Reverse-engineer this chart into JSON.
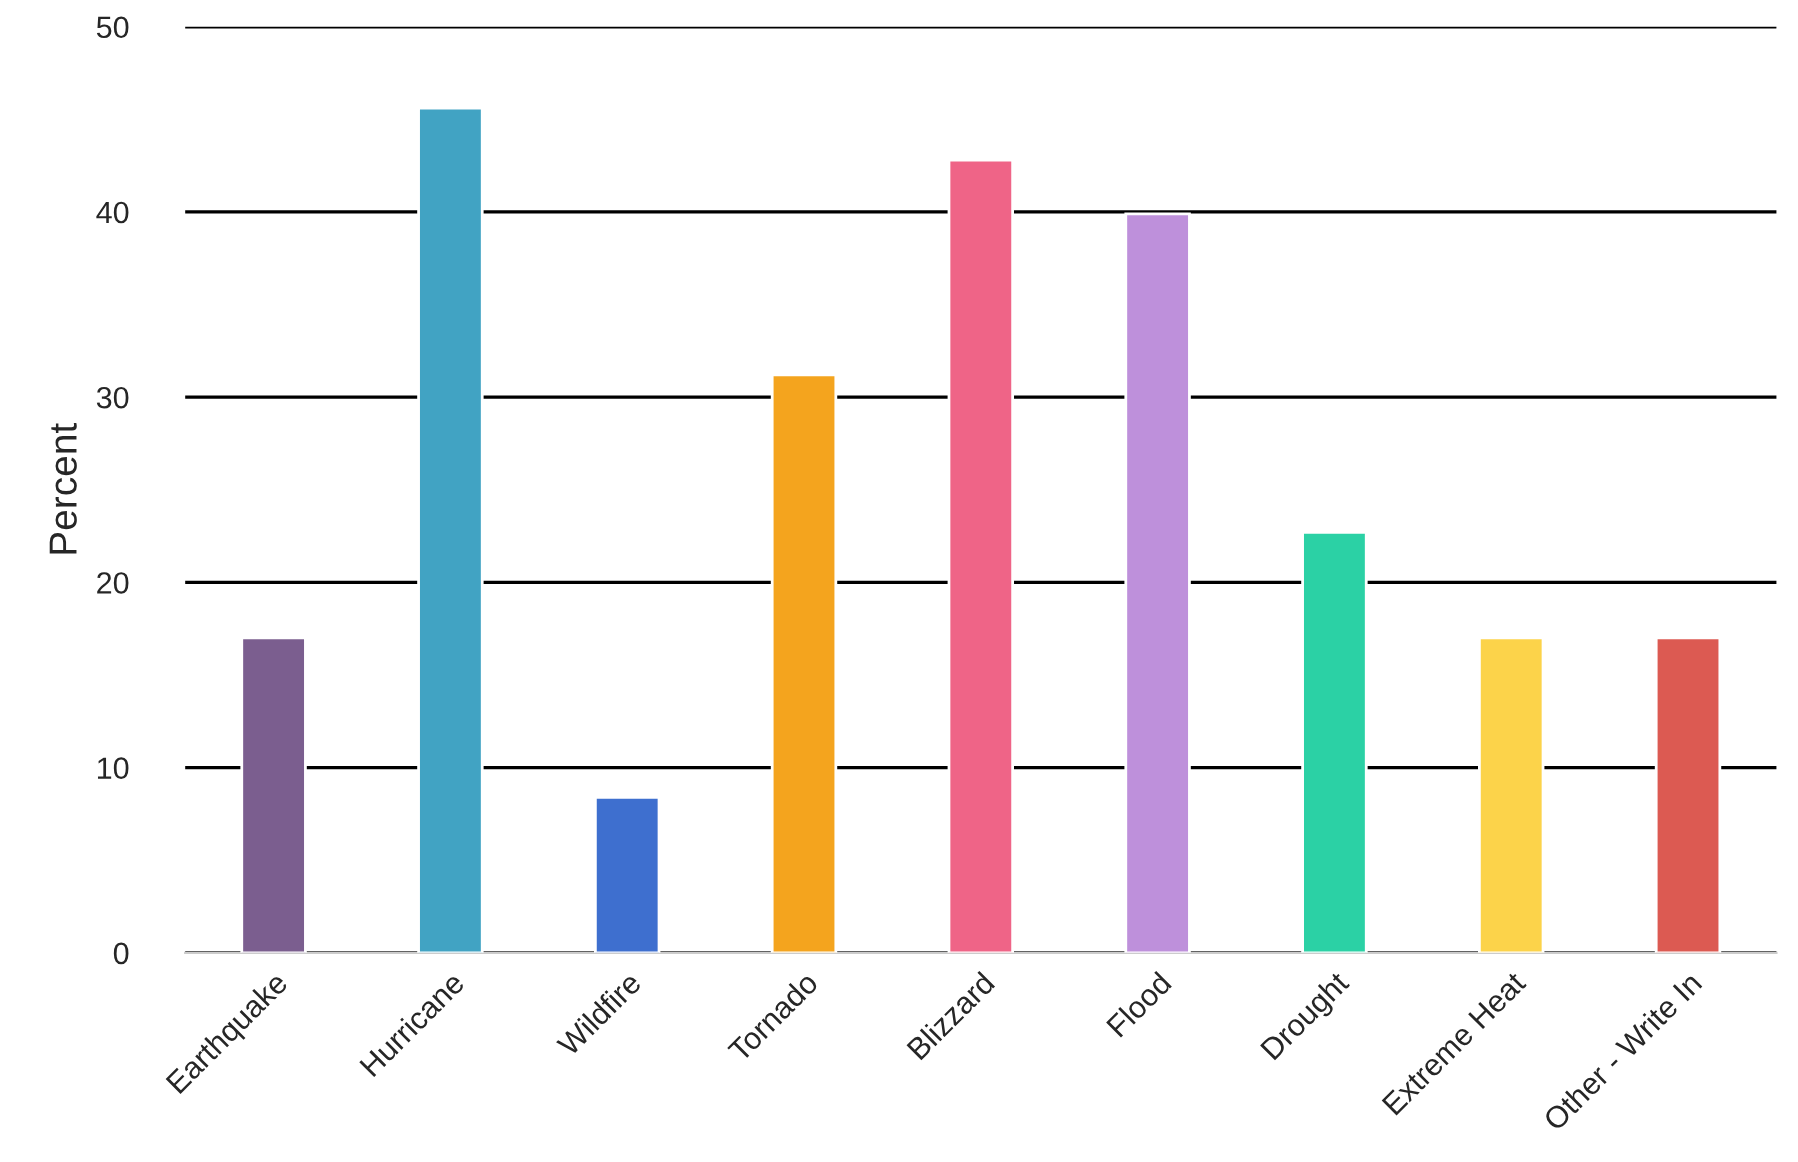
{
  "chart_data": {
    "type": "bar",
    "ylabel": "Percent",
    "categories": [
      "Earthquake",
      "Hurricane",
      "Wildfire",
      "Tornado",
      "Blizzard",
      "Flood",
      "Drought",
      "Extreme Heat",
      "Other - Write In"
    ],
    "values": [
      17.0,
      45.6,
      8.4,
      31.2,
      42.8,
      39.9,
      22.7,
      17.0,
      17.0
    ],
    "colors": [
      "#7b5e8f",
      "#41a3c3",
      "#3e6fcf",
      "#f4a41e",
      "#ef6487",
      "#be90db",
      "#2bd1a5",
      "#fcd34a",
      "#dc5a52"
    ],
    "ylim": [
      0,
      50
    ],
    "yticks": [
      0,
      10,
      20,
      30,
      40,
      50
    ],
    "grid": "y"
  }
}
